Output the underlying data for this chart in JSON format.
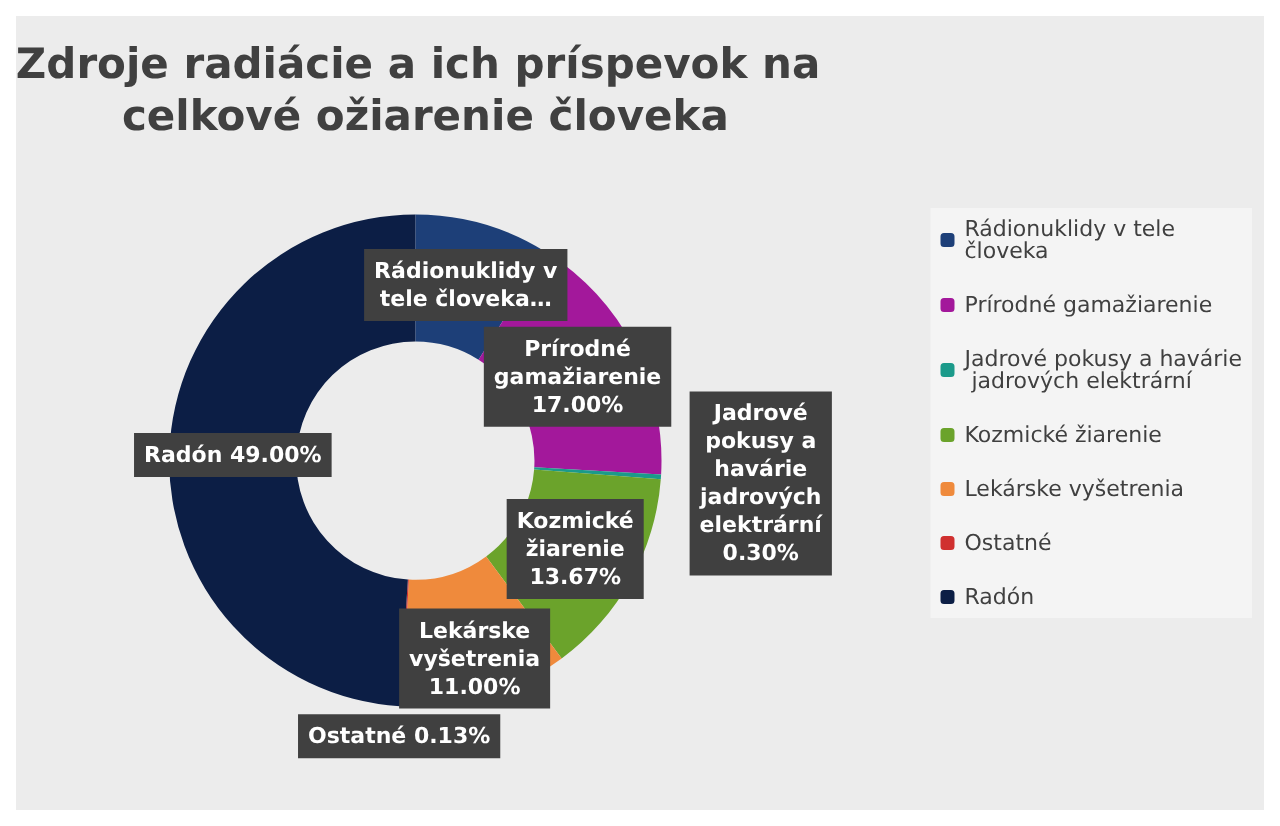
{
  "chart_data": {
    "type": "donut",
    "title": "Zdroje radiácie a ich príspevok na celkové ožiarenie človeka",
    "categories": [
      "Rádionuklidy v tele človeka",
      "Prírodné gamažiarenie",
      "Jadrové pokusy a havárie jadrových elektrární",
      "Kozmické žiarenie",
      "Lekárske vyšetrenia",
      "Ostatné",
      "Radón"
    ],
    "values": [
      8.9,
      17,
      0.3,
      13.67,
      11,
      0.13,
      49
    ],
    "colors": [
      "#1d3f78",
      "#a3189b",
      "#1b9a8a",
      "#6ba32b",
      "#ef8a3c",
      "#d0302f",
      "#0c1e45"
    ],
    "value_labels": [
      "Rádionuklidy v tele človeka…",
      "Prírodné gamažiarenie 17.00%",
      "Jadrové pokusy a havárie jadrových elektrární 0.30%",
      "Kozmické žiarenie 13.67%",
      "Lekárske vyšetrenia 11.00%",
      "Ostatné 0.13%",
      "Radón 49.00%"
    ],
    "legend": "right"
  }
}
